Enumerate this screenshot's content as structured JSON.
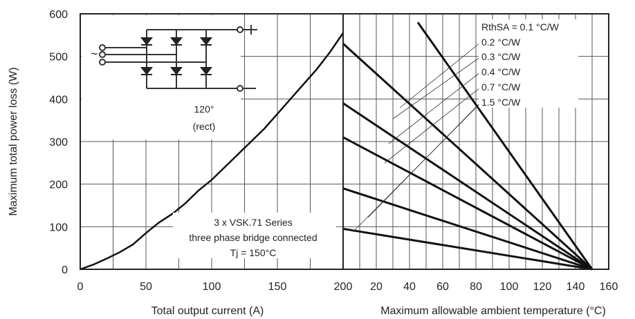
{
  "chart_data": [
    {
      "type": "line",
      "xlabel": "Total output current (A)",
      "ylabel": "Maximum total power loss (W)",
      "xlim": [
        0,
        200
      ],
      "ylim": [
        0,
        600
      ],
      "xticks": [
        "0",
        "50",
        "100",
        "150",
        "200"
      ],
      "yticks": [
        "0",
        "100",
        "200",
        "300",
        "400",
        "500",
        "600"
      ],
      "grid": true,
      "series": [
        {
          "x": [
            0,
            10,
            20,
            30,
            40,
            50,
            60,
            70,
            80,
            90,
            100,
            110,
            120,
            130,
            140,
            150,
            160,
            170,
            180,
            190,
            200
          ],
          "y": [
            0,
            11,
            25,
            40,
            58,
            85,
            110,
            130,
            155,
            185,
            210,
            240,
            270,
            300,
            330,
            365,
            400,
            435,
            470,
            510,
            555
          ]
        }
      ],
      "inset_labels": [
        "120°",
        "(rect)"
      ],
      "annotation": [
        "3 x VSK.71 Series",
        "three phase bridge connected",
        "Tj = 150°C"
      ]
    },
    {
      "type": "line",
      "xlabel": "Maximum allowable ambient temperature (°C)",
      "xlim": [
        0,
        160
      ],
      "ylim": [
        0,
        600
      ],
      "xticks": [
        "20",
        "40",
        "60",
        "80",
        "100",
        "120",
        "140",
        "160"
      ],
      "grid": true,
      "series": [
        {
          "name": "RthSA = 0.1 °C/W",
          "x": [
            45,
            150
          ],
          "y": [
            580,
            0
          ]
        },
        {
          "name": "0.2 °C/W",
          "x": [
            0,
            150
          ],
          "y": [
            530,
            0
          ]
        },
        {
          "name": "0.3 °C/W",
          "x": [
            0,
            150
          ],
          "y": [
            390,
            0
          ]
        },
        {
          "name": "0.4 °C/W",
          "x": [
            0,
            150
          ],
          "y": [
            310,
            0
          ]
        },
        {
          "name": "0.7 °C/W",
          "x": [
            0,
            150
          ],
          "y": [
            190,
            0
          ]
        },
        {
          "name": "1.5 °C/W",
          "x": [
            0,
            150
          ],
          "y": [
            95,
            0
          ]
        }
      ]
    }
  ]
}
